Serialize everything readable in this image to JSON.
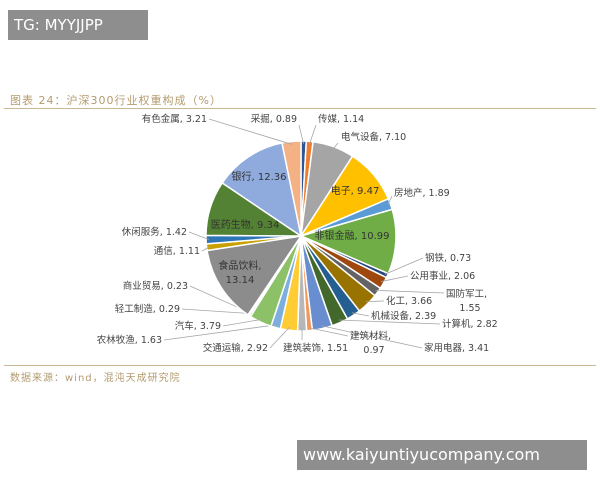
{
  "watermark_top": "TG: MYYJJPP",
  "watermark_bottom": "www.kaiyuntiyucompany.com",
  "source": "数据来源：wind，混沌天成研究院",
  "chart_data": {
    "type": "pie",
    "title": "图表 24：沪深300行业权重构成（%）",
    "start": "top, clockwise",
    "slices": [
      {
        "label": "采掘",
        "value": 0.89,
        "color": "#2F5597"
      },
      {
        "label": "传媒",
        "value": 1.14,
        "color": "#ED7D31"
      },
      {
        "label": "电气设备",
        "value": 7.1,
        "color": "#A5A5A5"
      },
      {
        "label": "电子",
        "value": 9.47,
        "color": "#FFC000"
      },
      {
        "label": "房地产",
        "value": 1.89,
        "color": "#5B9BD5"
      },
      {
        "label": "非银金融",
        "value": 10.99,
        "color": "#70AD47"
      },
      {
        "label": "钢铁",
        "value": 0.73,
        "color": "#264478"
      },
      {
        "label": "公用事业",
        "value": 2.06,
        "color": "#9E480E"
      },
      {
        "label": "国防军工",
        "value": 1.55,
        "color": "#636363"
      },
      {
        "label": "化工",
        "value": 3.66,
        "color": "#997300"
      },
      {
        "label": "机械设备",
        "value": 2.39,
        "color": "#255E91"
      },
      {
        "label": "计算机",
        "value": 2.82,
        "color": "#43682B"
      },
      {
        "label": "家用电器",
        "value": 3.41,
        "color": "#698ED0"
      },
      {
        "label": "建筑材料",
        "value": 0.97,
        "color": "#F1975A"
      },
      {
        "label": "建筑装饰",
        "value": 1.51,
        "color": "#B7B7B7"
      },
      {
        "label": "交通运输",
        "value": 2.92,
        "color": "#FFCD33"
      },
      {
        "label": "农林牧渔",
        "value": 1.63,
        "color": "#7CAFDD"
      },
      {
        "label": "汽车",
        "value": 3.79,
        "color": "#8CC168"
      },
      {
        "label": "轻工制造",
        "value": 0.29,
        "color": "#2F4B7C"
      },
      {
        "label": "商业贸易",
        "value": 0.23,
        "color": "#C55A11"
      },
      {
        "label": "食品饮料",
        "value": 13.14,
        "color": "#8C8C8C"
      },
      {
        "label": "通信",
        "value": 1.11,
        "color": "#C9A000"
      },
      {
        "label": "休闲服务",
        "value": 1.42,
        "color": "#2E75B6"
      },
      {
        "label": "医药生物",
        "value": 9.34,
        "color": "#548235"
      },
      {
        "label": "银行",
        "value": 12.36,
        "color": "#8FAADC"
      },
      {
        "label": "有色金属",
        "value": 3.21,
        "color": "#F4B183"
      }
    ]
  }
}
